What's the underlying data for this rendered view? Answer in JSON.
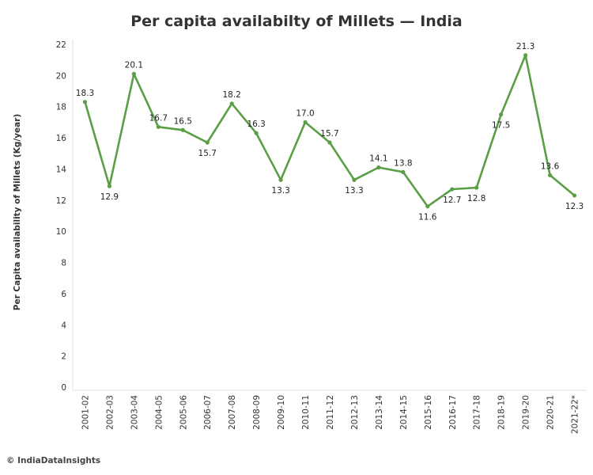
{
  "chart_data": {
    "type": "line",
    "title": "Per capita availabilty of Millets — India",
    "ylabel": "Per Capita availability of Millets (Kg/year)",
    "xlabel": "",
    "categories": [
      "2001-02",
      "2002-03",
      "2003-04",
      "2004-05",
      "2005-06",
      "2006-07",
      "2007-08",
      "2008-09",
      "2009-10",
      "2010-11",
      "2011-12",
      "2012-13",
      "2013-14",
      "2014-15",
      "2015-16",
      "2016-17",
      "2017-18",
      "2018-19",
      "2019-20",
      "2020-21",
      "2021-22*"
    ],
    "series": [
      {
        "values": [
          18.3,
          12.9,
          20.1,
          16.7,
          16.5,
          15.7,
          18.2,
          16.3,
          13.3,
          17.0,
          15.7,
          13.3,
          14.1,
          13.8,
          11.6,
          12.7,
          12.8,
          17.5,
          21.3,
          13.6,
          12.3
        ],
        "data_labels": [
          "18.3",
          "12.9",
          "20.1",
          "16.7",
          "16.5",
          "15.7",
          "18.2",
          "16.3",
          "13.3",
          "17.0",
          "15.7",
          "13.3",
          "14.1",
          "13.8",
          "11.6",
          "12.7",
          "12.8",
          "17.5",
          "21.3",
          "13.6",
          "12.3"
        ]
      }
    ],
    "yticks": [
      "0",
      "2",
      "4",
      "6",
      "8",
      "10",
      "12",
      "14",
      "16",
      "18",
      "20",
      "22"
    ],
    "ylim": [
      0,
      22
    ],
    "grid": false,
    "line_color": "#5a9e45"
  },
  "credit": "© IndiaDataInsights"
}
